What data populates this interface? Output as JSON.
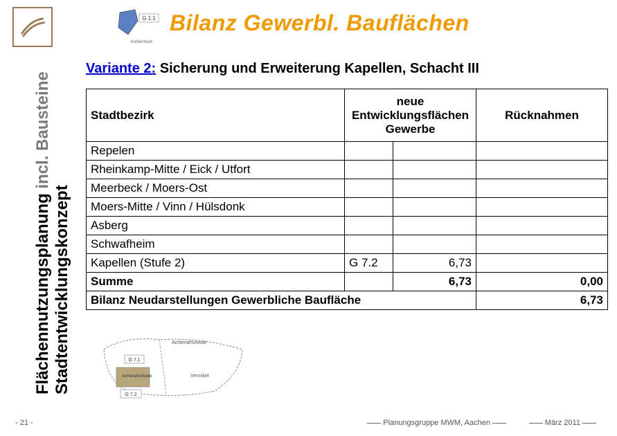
{
  "logo": {
    "stroke": "#9a7a50"
  },
  "title": "Bilanz Gewerbl. Bauflächen",
  "sidebar": {
    "main": "Flächennutzungsplanung",
    "grey": " incl. Bausteine",
    "sub": "Stadtentwicklungskonzept"
  },
  "thumb": {
    "code": "G 1.1",
    "caption": "Kohlenhuck",
    "fill": "#5a7fc2",
    "border": "#7a7a7a"
  },
  "variant": {
    "label": "Variante 2:",
    "text": "  Sicherung und Erweiterung Kapellen, Schacht III"
  },
  "table": {
    "headers": {
      "col1": "Stadtbezirk",
      "col2": "neue Entwicklungsflächen Gewerbe",
      "col3": "Rücknahmen"
    },
    "rows": [
      {
        "label": "Repelen",
        "code": "",
        "val": "",
        "ruck": ""
      },
      {
        "label": "Rheinkamp-Mitte / Eick / Utfort",
        "code": "",
        "val": "",
        "ruck": ""
      },
      {
        "label": "Meerbeck / Moers-Ost",
        "code": "",
        "val": "",
        "ruck": ""
      },
      {
        "label": "Moers-Mitte / Vinn / Hülsdonk",
        "code": "",
        "val": "",
        "ruck": ""
      },
      {
        "label": "Asberg",
        "code": "",
        "val": "",
        "ruck": ""
      },
      {
        "label": "Schwafheim",
        "code": "",
        "val": "",
        "ruck": ""
      },
      {
        "label": "Kapellen (Stufe 2)",
        "code": "G 7.2",
        "val": "6,73",
        "ruck": ""
      }
    ],
    "summe": {
      "label": "Summe",
      "val": "6,73",
      "ruck": "0,00"
    },
    "bilanz": {
      "label": "Bilanz Neudarstellungen Gewerbliche Baufläche",
      "val": "6,73"
    }
  },
  "map_bottom": {
    "labels": [
      "Achterathsheide",
      "Achterathsheide",
      "Vennikel"
    ],
    "codes": [
      "G 7.1",
      "G 7.2"
    ],
    "shade": "#b7a77a",
    "border": "#7a7a7a"
  },
  "footer": {
    "page": "21",
    "credit": "Planungsgruppe MWM, Aachen",
    "date": "März 2011"
  },
  "colors": {
    "title": "#ee9a00",
    "link": "#0000cc",
    "border": "#000000",
    "bg": "#ffffff"
  }
}
